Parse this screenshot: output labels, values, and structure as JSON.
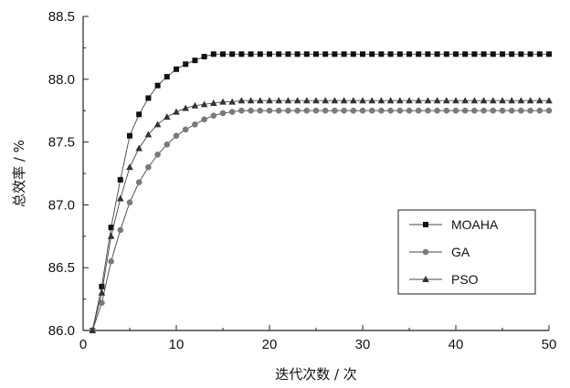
{
  "chart_data": {
    "type": "line",
    "xlabel": "迭代次数 / 次",
    "ylabel": "总效率 / %",
    "xlim": [
      0,
      50
    ],
    "ylim": [
      86.0,
      88.5
    ],
    "xticks": [
      "0",
      "10",
      "20",
      "30",
      "40",
      "50"
    ],
    "yticks": [
      "86.0",
      "86.5",
      "87.0",
      "87.5",
      "88.0",
      "88.5"
    ],
    "grid": false,
    "legend_position": "right-middle",
    "x": [
      1,
      2,
      3,
      4,
      5,
      6,
      7,
      8,
      9,
      10,
      11,
      12,
      13,
      14,
      15,
      16,
      17,
      18,
      19,
      20,
      21,
      22,
      23,
      24,
      25,
      26,
      27,
      28,
      29,
      30,
      31,
      32,
      33,
      34,
      35,
      36,
      37,
      38,
      39,
      40,
      41,
      42,
      43,
      44,
      45,
      46,
      47,
      48,
      49,
      50
    ],
    "series": [
      {
        "name": "MOAHA",
        "marker": "square",
        "color": "#111111",
        "values": [
          86.0,
          86.35,
          86.82,
          87.2,
          87.55,
          87.72,
          87.85,
          87.95,
          88.02,
          88.08,
          88.12,
          88.15,
          88.18,
          88.2,
          88.2,
          88.2,
          88.2,
          88.2,
          88.2,
          88.2,
          88.2,
          88.2,
          88.2,
          88.2,
          88.2,
          88.2,
          88.2,
          88.2,
          88.2,
          88.2,
          88.2,
          88.2,
          88.2,
          88.2,
          88.2,
          88.2,
          88.2,
          88.2,
          88.2,
          88.2,
          88.2,
          88.2,
          88.2,
          88.2,
          88.2,
          88.2,
          88.2,
          88.2,
          88.2,
          88.2
        ]
      },
      {
        "name": "GA",
        "marker": "circle",
        "color": "#7a7a7a",
        "values": [
          86.0,
          86.22,
          86.55,
          86.8,
          87.02,
          87.18,
          87.3,
          87.4,
          87.48,
          87.55,
          87.6,
          87.64,
          87.68,
          87.71,
          87.73,
          87.74,
          87.75,
          87.75,
          87.75,
          87.75,
          87.75,
          87.75,
          87.75,
          87.75,
          87.75,
          87.75,
          87.75,
          87.75,
          87.75,
          87.75,
          87.75,
          87.75,
          87.75,
          87.75,
          87.75,
          87.75,
          87.75,
          87.75,
          87.75,
          87.75,
          87.75,
          87.75,
          87.75,
          87.75,
          87.75,
          87.75,
          87.75,
          87.75,
          87.75,
          87.75
        ]
      },
      {
        "name": "PSO",
        "marker": "triangle",
        "color": "#333333",
        "values": [
          86.0,
          86.3,
          86.75,
          87.05,
          87.3,
          87.45,
          87.56,
          87.64,
          87.7,
          87.74,
          87.77,
          87.79,
          87.8,
          87.81,
          87.82,
          87.82,
          87.83,
          87.83,
          87.83,
          87.83,
          87.83,
          87.83,
          87.83,
          87.83,
          87.83,
          87.83,
          87.83,
          87.83,
          87.83,
          87.83,
          87.83,
          87.83,
          87.83,
          87.83,
          87.83,
          87.83,
          87.83,
          87.83,
          87.83,
          87.83,
          87.83,
          87.83,
          87.83,
          87.83,
          87.83,
          87.83,
          87.83,
          87.83,
          87.83,
          87.83
        ]
      }
    ]
  }
}
